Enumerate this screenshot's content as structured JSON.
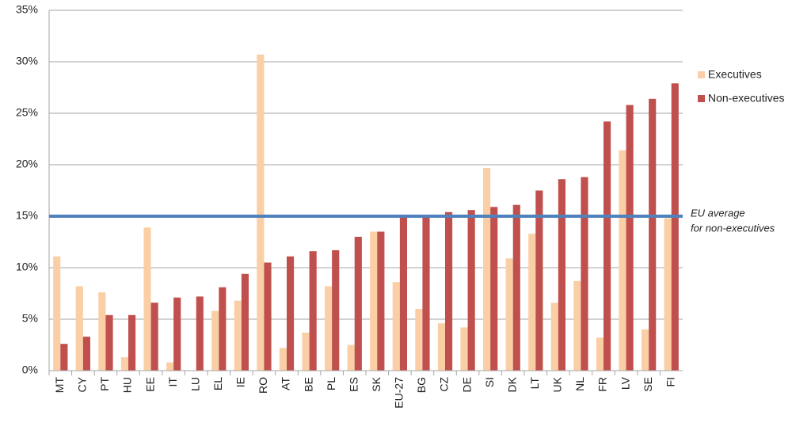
{
  "chart_data": {
    "type": "bar",
    "categories": [
      "MT",
      "CY",
      "PT",
      "HU",
      "EE",
      "IT",
      "LU",
      "EL",
      "IE",
      "RO",
      "AT",
      "BE",
      "PL",
      "ES",
      "SK",
      "EU-27",
      "BG",
      "CZ",
      "DE",
      "SI",
      "DK",
      "LT",
      "UK",
      "NL",
      "FR",
      "LV",
      "SE",
      "FI"
    ],
    "series": [
      {
        "name": "Executives",
        "color": "#fbcfa5",
        "values": [
          11.1,
          8.2,
          7.6,
          1.3,
          13.9,
          0.8,
          0,
          5.8,
          6.8,
          30.7,
          2.2,
          3.7,
          8.2,
          2.5,
          13.5,
          8.6,
          6.0,
          4.6,
          4.2,
          19.7,
          10.9,
          13.3,
          6.6,
          8.7,
          3.2,
          21.4,
          4.0,
          14.8
        ]
      },
      {
        "name": "Non-executives",
        "color": "#c0504d",
        "values": [
          2.6,
          3.3,
          5.4,
          5.4,
          6.6,
          7.1,
          7.2,
          8.1,
          9.4,
          10.5,
          11.1,
          11.6,
          11.7,
          13.0,
          13.5,
          15.0,
          15.0,
          15.4,
          15.6,
          15.9,
          16.1,
          17.5,
          18.6,
          18.8,
          24.2,
          25.8,
          26.4,
          27.9
        ]
      }
    ],
    "ylim": [
      0,
      35
    ],
    "yticks": [
      {
        "value": 0,
        "label": "0%"
      },
      {
        "value": 5,
        "label": "5%"
      },
      {
        "value": 10,
        "label": "10%"
      },
      {
        "value": 15,
        "label": "15%"
      },
      {
        "value": 20,
        "label": "20%"
      },
      {
        "value": 25,
        "label": "25%"
      },
      {
        "value": 30,
        "label": "30%"
      },
      {
        "value": 35,
        "label": "35%"
      }
    ],
    "grid": true,
    "legend": "right",
    "reference_line": {
      "value": 15,
      "color": "#4f81bd",
      "label": [
        "EU average",
        "for non-executives"
      ]
    }
  }
}
